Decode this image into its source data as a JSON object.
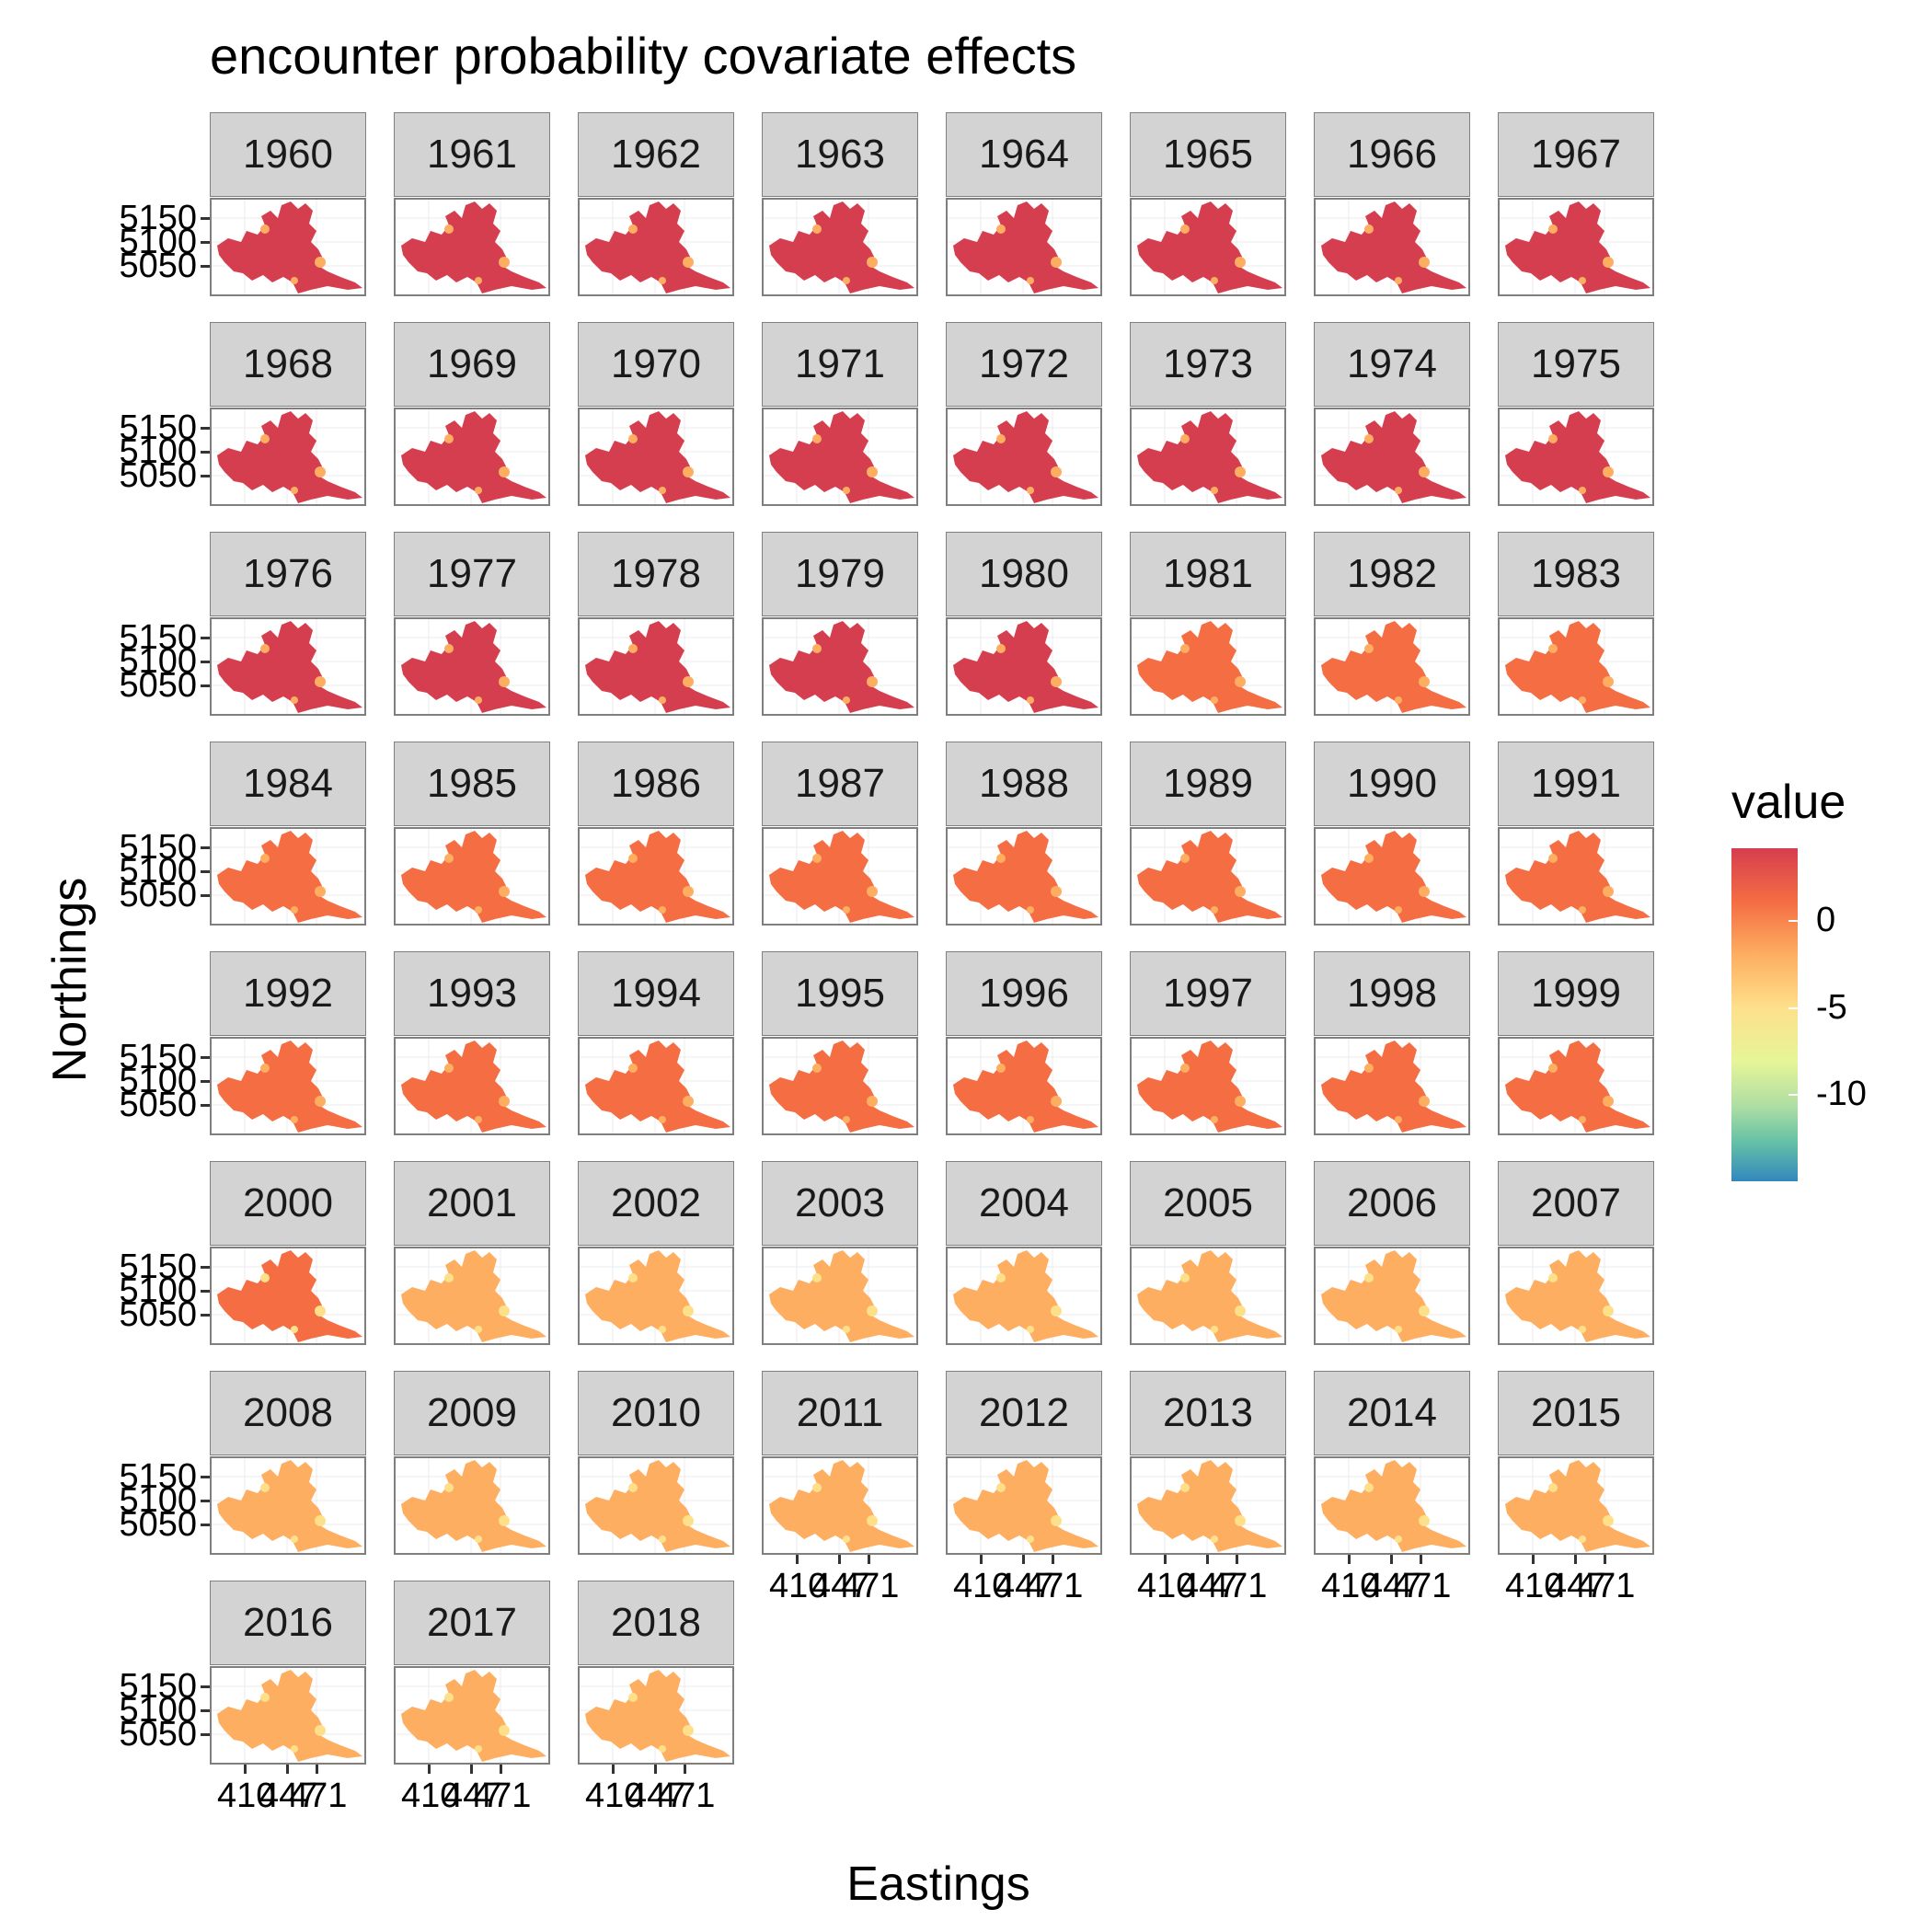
{
  "title": "encounter probability covariate effects",
  "chart_data": {
    "type": "heatmap",
    "title": "encounter probability covariate effects",
    "xlabel": "Eastings",
    "ylabel": "Northings",
    "facets": [
      "1960",
      "1961",
      "1962",
      "1963",
      "1964",
      "1965",
      "1966",
      "1967",
      "1968",
      "1969",
      "1970",
      "1971",
      "1972",
      "1973",
      "1974",
      "1975",
      "1976",
      "1977",
      "1978",
      "1979",
      "1980",
      "1981",
      "1982",
      "1983",
      "1984",
      "1985",
      "1986",
      "1987",
      "1988",
      "1989",
      "1990",
      "1991",
      "1992",
      "1993",
      "1994",
      "1995",
      "1996",
      "1997",
      "1998",
      "1999",
      "2000",
      "2001",
      "2002",
      "2003",
      "2004",
      "2005",
      "2006",
      "2007",
      "2008",
      "2009",
      "2010",
      "2011",
      "2012",
      "2013",
      "2014",
      "2015",
      "2016",
      "2017",
      "2018"
    ],
    "y_ticks": [
      "5150",
      "5100",
      "5050"
    ],
    "x_ticks": [
      "410",
      "447",
      "471"
    ],
    "legend": {
      "title": "value",
      "labels": [
        "0",
        "-5",
        "-10"
      ],
      "placement": "right",
      "palette": [
        "#d53e4f",
        "#f46d43",
        "#fdae61",
        "#fee08b",
        "#e6f598",
        "#abdda4",
        "#66c2a5",
        "#3288bd"
      ]
    },
    "grid": true
  }
}
